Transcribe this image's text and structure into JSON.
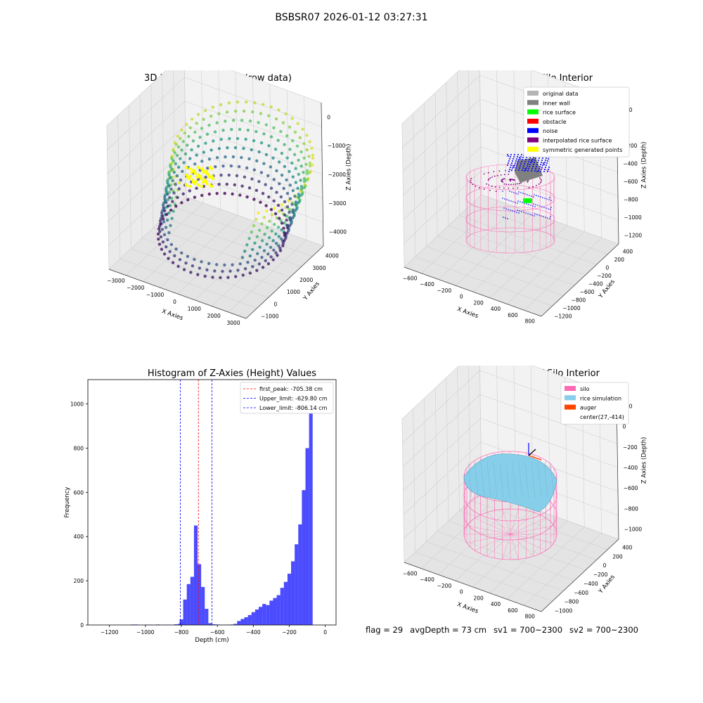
{
  "figure": {
    "suptitle": "BSBSR07 2026-01-12 03:27:31"
  },
  "chart_data": [
    {
      "type": "scatter",
      "subtype": "3d",
      "title": "3D Plot of Silo Interior(row data)",
      "xlabel": "X Axies",
      "ylabel": "Y Axies",
      "zlabel": "Z Axies (Depth)",
      "xticks": [
        "−3000",
        "−2000",
        "−1000",
        "0",
        "1000",
        "2000",
        "3000"
      ],
      "yticks": [
        "−1000",
        "0",
        "1000",
        "2000",
        "3000",
        "4000"
      ],
      "zticks": [
        "0",
        "−1000",
        "−2000",
        "−3000",
        "−4000"
      ],
      "xlim": [
        -3500,
        3500
      ],
      "ylim": [
        -1000,
        4500
      ],
      "zlim": [
        -4500,
        0
      ],
      "colormap": "viridis",
      "highlight_color": "#ffff00"
    },
    {
      "type": "scatter",
      "subtype": "3d",
      "title": "3D classify of Silo Interior",
      "xlabel": "X Axies",
      "ylabel": "Y Axies",
      "zlabel": "Z Axies (Depth)",
      "xticks": [
        "−600",
        "−400",
        "−200",
        "0",
        "200",
        "400",
        "600",
        "800"
      ],
      "yticks": [
        "−1200",
        "−1000",
        "−800",
        "−600",
        "−400",
        "−200",
        "0",
        "200",
        "400"
      ],
      "zticks": [
        "200",
        "0",
        "−200",
        "−400",
        "−600",
        "−800",
        "−1000",
        "−1200"
      ],
      "legend_position": "top-right",
      "legend": [
        {
          "label": "original data",
          "color": "#b4b4b4"
        },
        {
          "label": "inner wall",
          "color": "#808080"
        },
        {
          "label": "rice surface",
          "color": "#00ff00"
        },
        {
          "label": "obstacle",
          "color": "#ff0000"
        },
        {
          "label": "noise",
          "color": "#0000ff"
        },
        {
          "label": "interpolated rice surface",
          "color": "#800080"
        },
        {
          "label": "symmetric generated points",
          "color": "#ffff00"
        }
      ]
    },
    {
      "type": "bar",
      "subtype": "histogram",
      "title": "Histogram of Z-Axies (Height) Values",
      "xlabel": "Depth (cm)",
      "ylabel": "Frequency",
      "xlim": [
        -1320,
        60
      ],
      "ylim": [
        0,
        1110
      ],
      "xticks": [
        -1200,
        -1000,
        -800,
        -600,
        -400,
        -200,
        0
      ],
      "xtick_labels": [
        "−1200",
        "−1000",
        "−800",
        "−600",
        "−400",
        "−200",
        "0"
      ],
      "yticks": [
        0,
        200,
        400,
        600,
        800,
        1000
      ],
      "bar_color": "#0000ff",
      "bin_width": 20,
      "bins": [
        [
          -1080,
          2
        ],
        [
          -1060,
          2
        ],
        [
          -1000,
          1
        ],
        [
          -980,
          1
        ],
        [
          -940,
          2
        ],
        [
          -900,
          1
        ],
        [
          -880,
          1
        ],
        [
          -840,
          3
        ],
        [
          -820,
          5
        ],
        [
          -810,
          25
        ],
        [
          -790,
          115
        ],
        [
          -770,
          185
        ],
        [
          -750,
          218
        ],
        [
          -730,
          450
        ],
        [
          -710,
          275
        ],
        [
          -690,
          172
        ],
        [
          -670,
          73
        ],
        [
          -650,
          8
        ],
        [
          -630,
          3
        ],
        [
          -610,
          2
        ],
        [
          -590,
          1
        ],
        [
          -570,
          1
        ],
        [
          -550,
          1
        ],
        [
          -530,
          2
        ],
        [
          -510,
          5
        ],
        [
          -490,
          18
        ],
        [
          -470,
          27
        ],
        [
          -450,
          35
        ],
        [
          -430,
          45
        ],
        [
          -410,
          58
        ],
        [
          -390,
          70
        ],
        [
          -370,
          82
        ],
        [
          -350,
          95
        ],
        [
          -330,
          90
        ],
        [
          -310,
          110
        ],
        [
          -290,
          122
        ],
        [
          -270,
          135
        ],
        [
          -250,
          168
        ],
        [
          -230,
          195
        ],
        [
          -210,
          232
        ],
        [
          -190,
          288
        ],
        [
          -170,
          365
        ],
        [
          -150,
          455
        ],
        [
          -130,
          610
        ],
        [
          -110,
          800
        ],
        [
          -90,
          1040
        ],
        [
          -70,
          0
        ]
      ],
      "vlines": [
        {
          "label": "first_peak: -705.38 cm",
          "x": -705.38,
          "color": "#ff0000"
        },
        {
          "label": "Upper_limit: -629.80 cm",
          "x": -629.8,
          "color": "#0000ff"
        },
        {
          "label": "Lower_limit: -806.14 cm",
          "x": -806.14,
          "color": "#0000ff"
        }
      ],
      "legend_position": "top-right"
    },
    {
      "type": "scatter",
      "subtype": "3d-surface",
      "title": "3D simulation of Silo Interior",
      "xlabel": "X Axies",
      "ylabel": "Y Axies",
      "zlabel": "Z Axies (Depth)",
      "xticks": [
        "−600",
        "−400",
        "−200",
        "0",
        "200",
        "400",
        "600",
        "800"
      ],
      "yticks": [
        "−1000",
        "−800",
        "−600",
        "−400",
        "−200",
        "0",
        "200",
        "400"
      ],
      "zticks": [
        "200",
        "0",
        "−200",
        "−400",
        "−600",
        "−800",
        "−1000"
      ],
      "legend_position": "top-right",
      "legend": [
        {
          "label": "silo",
          "color": "#ff69b4"
        },
        {
          "label": "rice simulation",
          "color": "#87ceeb"
        },
        {
          "label": "auger",
          "color": "#ff4500"
        },
        {
          "label": "center(27,-414)",
          "color": ""
        }
      ]
    }
  ],
  "footer": {
    "flag": "flag = 29",
    "avgDepth": "avgDepth = 73 cm",
    "sv1": "sv1 = 700~2300",
    "sv2": "sv2 = 700~2300"
  }
}
